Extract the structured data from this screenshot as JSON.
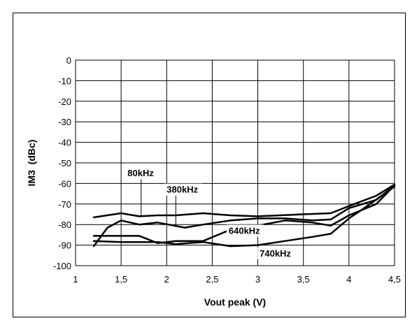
{
  "chart_data": {
    "type": "line",
    "title": "",
    "xlabel": "Vout peak (V)",
    "ylabel": "IM3  (dBc)",
    "xlim": [
      1,
      4.5
    ],
    "ylim": [
      -100,
      0
    ],
    "grid": true,
    "x_ticks": [
      1,
      1.5,
      2,
      2.5,
      3,
      3.5,
      4,
      4.5
    ],
    "x_tick_labels": [
      "1",
      "1,5",
      "2",
      "2,5",
      "3",
      "3,5",
      "4",
      "4,5"
    ],
    "y_ticks": [
      0,
      -10,
      -20,
      -30,
      -40,
      -50,
      -60,
      -70,
      -80,
      -90,
      -100
    ],
    "y_tick_labels": [
      "0",
      "-10",
      "-20",
      "-30",
      "-40",
      "-50",
      "-60",
      "-70",
      "-80",
      "-90",
      "-100"
    ],
    "series": [
      {
        "name": "80kHz",
        "x": [
          1.2,
          1.5,
          1.7,
          1.9,
          2.1,
          2.4,
          2.7,
          3.0,
          3.5,
          3.8,
          4.0,
          4.3,
          4.5
        ],
        "y": [
          -76.5,
          -74.5,
          -76,
          -75.5,
          -75.5,
          -74.5,
          -75.5,
          -76,
          -75,
          -74.5,
          -71,
          -66,
          -60.5
        ]
      },
      {
        "name": "380kHz",
        "x": [
          1.2,
          1.35,
          1.5,
          1.7,
          1.9,
          2.2,
          2.4,
          2.7,
          3.0,
          3.3,
          3.6,
          3.8,
          4.0,
          4.3,
          4.5
        ],
        "y": [
          -90.5,
          -81.5,
          -78,
          -80,
          -79,
          -81.5,
          -80,
          -78,
          -77,
          -77,
          -78,
          -77.5,
          -72,
          -68,
          -61
        ]
      },
      {
        "name": "640kHz",
        "x": [
          1.2,
          1.5,
          1.7,
          1.9,
          2.1,
          2.4,
          2.7,
          3.0,
          3.3,
          3.6,
          3.8,
          4.0,
          4.3,
          4.5
        ],
        "y": [
          -85.5,
          -85.5,
          -85.5,
          -89,
          -88,
          -88,
          -82.5,
          -80.5,
          -78,
          -79,
          -80.5,
          -75.5,
          -70,
          -61
        ]
      },
      {
        "name": "740kHz",
        "x": [
          1.2,
          1.5,
          1.7,
          1.9,
          2.1,
          2.4,
          2.7,
          3.0,
          3.3,
          3.6,
          3.8,
          4.0,
          4.2,
          4.5
        ],
        "y": [
          -88,
          -88.5,
          -88.5,
          -88.5,
          -89.5,
          -88.5,
          -90.5,
          -90,
          -88,
          -86,
          -84.5,
          -77,
          -71,
          -61.5
        ]
      }
    ],
    "annotations": [
      {
        "text": "80kHz",
        "x": 1.57,
        "y": -56.5,
        "arrow_to": {
          "x": 1.72,
          "y": -75.6
        }
      },
      {
        "text": "380kHz",
        "x": 2.0,
        "y": -64.5,
        "arrow_to": {
          "x": 2.1,
          "y": -81.2
        }
      },
      {
        "text": "640kHz",
        "x": 2.68,
        "y": -84.5
      },
      {
        "text": "740kHz",
        "x": 3.02,
        "y": -95.5
      }
    ]
  }
}
